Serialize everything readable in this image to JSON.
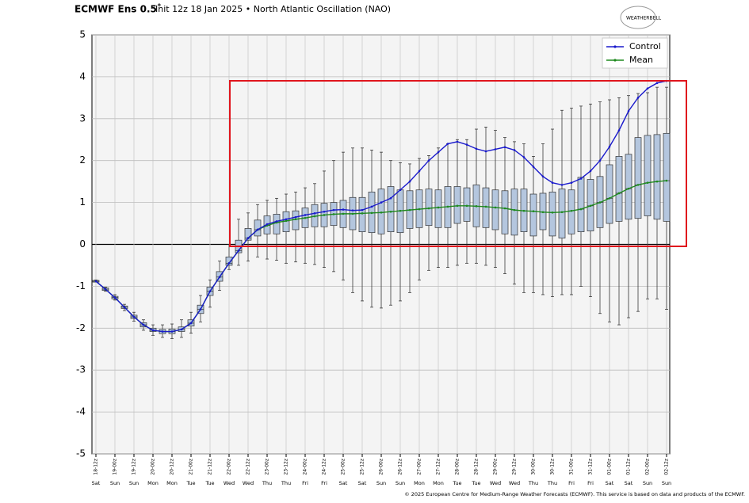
{
  "chart_data": {
    "type": "box",
    "title": "ECMWF Ens 0.5˚",
    "subtitle": "Init 12z 18 Jan 2025 • North Atlantic Oscillation (NAO)",
    "logo": "WEATHERBELL",
    "footer": "© 2025 European Centre for Medium-Range Weather Forecasts (ECMWF). This service is based on data and products of the ECMWF.",
    "categories": [
      "18-12z",
      null,
      "19-00z",
      null,
      "19-12z",
      null,
      "20-00z",
      null,
      "20-12z",
      null,
      "21-00z",
      null,
      "21-12z",
      null,
      "22-00z",
      null,
      "22-12z",
      null,
      "23-00z",
      null,
      "23-12z",
      null,
      "24-00z",
      null,
      "24-12z",
      null,
      "25-00z",
      null,
      "25-12z",
      null,
      "26-00z",
      null,
      "26-12z",
      null,
      "27-00z",
      null,
      "27-12z",
      null,
      "28-00z",
      null,
      "28-12z",
      null,
      "29-00z",
      null,
      "29-12z",
      null,
      "30-00z",
      null,
      "30-12z",
      null,
      "31-00z",
      null,
      "31-12z",
      null,
      "01-00z",
      null,
      "01-12z",
      null,
      "02-00z",
      null,
      "02-12z"
    ],
    "weekdays": [
      "Sat",
      null,
      "Sun",
      null,
      "Sun",
      null,
      "Mon",
      null,
      "Mon",
      null,
      "Tue",
      null,
      "Tue",
      null,
      "Wed",
      null,
      "Wed",
      null,
      "Thu",
      null,
      "Thu",
      null,
      "Fri",
      null,
      "Fri",
      null,
      "Sat",
      null,
      "Sat",
      null,
      "Sun",
      null,
      "Sun",
      null,
      "Mon",
      null,
      "Mon",
      null,
      "Tue",
      null,
      "Tue",
      null,
      "Wed",
      null,
      "Wed",
      null,
      "Thu",
      null,
      "Thu",
      null,
      "Fri",
      null,
      "Fri",
      null,
      "Sat",
      null,
      "Sat",
      null,
      "Sun",
      null,
      "Sun"
    ],
    "series": [
      {
        "name": "Control",
        "color": "#1a1acc",
        "values": [
          -0.88,
          -1.07,
          -1.27,
          -1.5,
          -1.73,
          -1.92,
          -2.05,
          -2.08,
          -2.08,
          -2.03,
          -1.88,
          -1.55,
          -1.12,
          -0.78,
          -0.45,
          -0.15,
          0.15,
          0.35,
          0.48,
          0.55,
          0.6,
          0.65,
          0.7,
          0.74,
          0.78,
          0.82,
          0.83,
          0.81,
          0.82,
          0.9,
          1.0,
          1.1,
          1.3,
          1.5,
          1.75,
          2.0,
          2.2,
          2.4,
          2.45,
          2.38,
          2.28,
          2.22,
          2.27,
          2.32,
          2.25,
          2.08,
          1.85,
          1.62,
          1.47,
          1.42,
          1.47,
          1.57,
          1.75,
          2.0,
          2.33,
          2.72,
          3.18,
          3.5,
          3.72,
          3.85,
          3.9
        ]
      },
      {
        "name": "Mean",
        "color": "#1f8a1f",
        "values": [
          -0.88,
          -1.07,
          -1.27,
          -1.5,
          -1.73,
          -1.92,
          -2.05,
          -2.08,
          -2.08,
          -2.03,
          -1.88,
          -1.55,
          -1.12,
          -0.78,
          -0.45,
          -0.15,
          0.15,
          0.35,
          0.45,
          0.52,
          0.56,
          0.6,
          0.63,
          0.67,
          0.7,
          0.72,
          0.73,
          0.73,
          0.74,
          0.75,
          0.76,
          0.78,
          0.8,
          0.82,
          0.84,
          0.86,
          0.88,
          0.9,
          0.92,
          0.92,
          0.91,
          0.9,
          0.88,
          0.86,
          0.82,
          0.8,
          0.79,
          0.77,
          0.76,
          0.77,
          0.8,
          0.84,
          0.92,
          1.0,
          1.1,
          1.22,
          1.33,
          1.42,
          1.47,
          1.5,
          1.52
        ]
      }
    ],
    "boxes": {
      "color": "#b4c6de",
      "min": [
        -0.9,
        -1.12,
        -1.33,
        -1.58,
        -1.83,
        -2.05,
        -2.17,
        -2.22,
        -2.25,
        -2.22,
        -2.12,
        -1.85,
        -1.5,
        -1.1,
        -0.6,
        -0.5,
        -0.4,
        -0.3,
        -0.35,
        -0.38,
        -0.45,
        -0.42,
        -0.45,
        -0.48,
        -0.55,
        -0.65,
        -0.85,
        -1.15,
        -1.35,
        -1.5,
        -1.52,
        -1.45,
        -1.35,
        -1.15,
        -0.85,
        -0.62,
        -0.55,
        -0.55,
        -0.5,
        -0.45,
        -0.45,
        -0.5,
        -0.55,
        -0.7,
        -0.95,
        -1.15,
        -1.15,
        -1.2,
        -1.25,
        -1.2,
        -1.2,
        -1.0,
        -1.25,
        -1.65,
        -1.85,
        -1.92,
        -1.75,
        -1.6,
        -1.3,
        -1.3,
        -1.55
      ],
      "q1": [
        -0.9,
        -1.1,
        -1.3,
        -1.53,
        -1.77,
        -1.97,
        -2.08,
        -2.13,
        -2.13,
        -2.08,
        -1.95,
        -1.65,
        -1.22,
        -0.88,
        -0.5,
        -0.2,
        0.1,
        0.2,
        0.25,
        0.25,
        0.3,
        0.35,
        0.4,
        0.42,
        0.42,
        0.45,
        0.4,
        0.35,
        0.3,
        0.28,
        0.25,
        0.3,
        0.28,
        0.38,
        0.4,
        0.45,
        0.4,
        0.4,
        0.5,
        0.55,
        0.42,
        0.4,
        0.35,
        0.25,
        0.22,
        0.3,
        0.2,
        0.35,
        0.2,
        0.15,
        0.25,
        0.3,
        0.32,
        0.4,
        0.5,
        0.55,
        0.6,
        0.62,
        0.68,
        0.6,
        0.55
      ],
      "median": [
        -0.88,
        -1.07,
        -1.27,
        -1.5,
        -1.73,
        -1.92,
        -2.05,
        -2.08,
        -2.08,
        -2.03,
        -1.88,
        -1.55,
        -1.12,
        -0.78,
        -0.45,
        -0.15,
        0.15,
        0.35,
        0.45,
        0.52,
        0.56,
        0.6,
        0.63,
        0.67,
        0.7,
        0.72,
        0.73,
        0.73,
        0.74,
        0.75,
        0.76,
        0.78,
        0.8,
        0.82,
        0.84,
        0.86,
        0.88,
        0.9,
        0.92,
        0.92,
        0.91,
        0.9,
        0.88,
        0.86,
        0.82,
        0.8,
        0.79,
        0.77,
        0.76,
        0.77,
        0.8,
        0.84,
        0.92,
        1.0,
        1.1,
        1.22,
        1.33,
        1.42,
        1.47,
        1.5,
        1.52
      ],
      "q3": [
        -0.86,
        -1.04,
        -1.24,
        -1.47,
        -1.69,
        -1.87,
        -2.0,
        -2.03,
        -2.02,
        -1.97,
        -1.8,
        -1.45,
        -1.02,
        -0.65,
        -0.3,
        0.1,
        0.38,
        0.58,
        0.68,
        0.72,
        0.78,
        0.8,
        0.87,
        0.95,
        0.98,
        1.0,
        1.05,
        1.12,
        1.12,
        1.25,
        1.32,
        1.38,
        1.3,
        1.28,
        1.3,
        1.32,
        1.3,
        1.38,
        1.38,
        1.35,
        1.42,
        1.35,
        1.3,
        1.28,
        1.32,
        1.32,
        1.2,
        1.22,
        1.25,
        1.32,
        1.3,
        1.6,
        1.55,
        1.62,
        1.9,
        2.1,
        2.15,
        2.55,
        2.6,
        2.62,
        2.65
      ],
      "max": [
        -0.85,
        -1.02,
        -1.2,
        -1.43,
        -1.62,
        -1.8,
        -1.92,
        -1.92,
        -1.9,
        -1.8,
        -1.62,
        -1.22,
        -0.85,
        -0.4,
        0.0,
        0.6,
        0.75,
        0.95,
        1.05,
        1.1,
        1.2,
        1.25,
        1.35,
        1.45,
        1.75,
        2.0,
        2.2,
        2.3,
        2.3,
        2.25,
        2.2,
        2.0,
        1.95,
        1.92,
        2.05,
        2.12,
        2.3,
        2.4,
        2.5,
        2.5,
        2.75,
        2.8,
        2.72,
        2.55,
        2.45,
        2.4,
        2.1,
        2.4,
        2.75,
        3.2,
        3.25,
        3.3,
        3.35,
        3.4,
        3.45,
        3.5,
        3.55,
        3.6,
        3.62,
        3.75,
        3.75
      ]
    },
    "ylim": [
      -5,
      5
    ],
    "yticks": [
      -5,
      -4,
      -3,
      -2,
      -1,
      0,
      1,
      2,
      3,
      4,
      5
    ],
    "grid": true,
    "legend": "upper right"
  }
}
